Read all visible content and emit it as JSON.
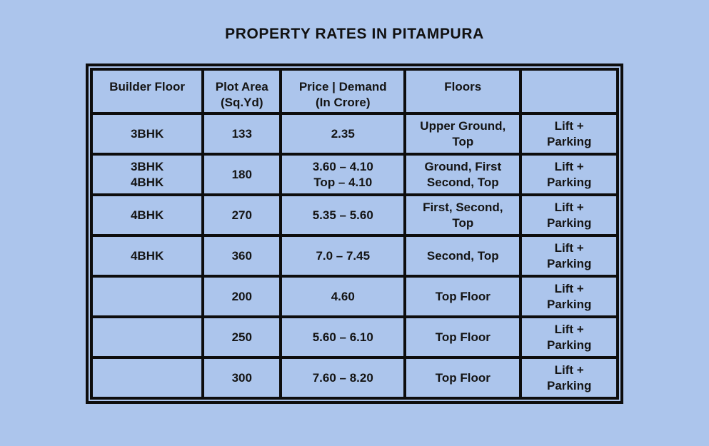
{
  "page": {
    "background_color": "#acc5ec",
    "border_color": "#0d0d0d",
    "text_color": "#141414"
  },
  "chart_data": {
    "type": "table",
    "title": "PROPERTY RATES IN PITAMPURA",
    "columns": [
      "Builder Floor",
      "Plot Area\n(Sq.Yd)",
      "Price | Demand\n(In Crore)",
      "Floors",
      ""
    ],
    "rows": [
      [
        "3BHK",
        "133",
        "2.35",
        "Upper Ground,\nTop",
        "Lift +\nParking"
      ],
      [
        "3BHK\n4BHK",
        "180",
        "3.60 – 4.10\nTop – 4.10",
        "Ground, First\nSecond, Top",
        "Lift +\nParking"
      ],
      [
        "4BHK",
        "270",
        "5.35 – 5.60",
        "First, Second,\nTop",
        "Lift +\nParking"
      ],
      [
        "4BHK",
        "360",
        "7.0 – 7.45",
        "Second, Top",
        "Lift +\nParking"
      ],
      [
        "",
        "200",
        "4.60",
        "Top Floor",
        "Lift +\nParking"
      ],
      [
        "",
        "250",
        "5.60 – 6.10",
        "Top Floor",
        "Lift +\nParking"
      ],
      [
        "",
        "300",
        "7.60 – 8.20",
        "Top Floor",
        "Lift +\nParking"
      ]
    ]
  }
}
